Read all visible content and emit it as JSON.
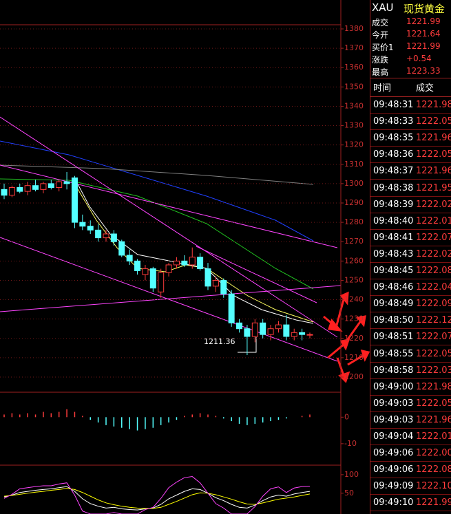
{
  "chart_data": [
    {
      "type": "candlestick",
      "open": [
        1297,
        1294,
        1298,
        1296,
        1299,
        1297,
        1300,
        1298,
        1301,
        1303,
        1280,
        1278,
        1276,
        1272,
        1274,
        1270,
        1263,
        1260,
        1253,
        1256,
        1244,
        1254,
        1258,
        1260,
        1258,
        1262,
        1256,
        1247,
        1250,
        1243,
        1228,
        1225,
        1221,
        1228,
        1222,
        1225,
        1227,
        1221,
        1223,
        1222
      ],
      "high": [
        1300,
        1299,
        1300,
        1301,
        1302,
        1301,
        1302,
        1302,
        1306,
        1304,
        1284,
        1281,
        1279,
        1276,
        1276,
        1271,
        1266,
        1261,
        1258,
        1257,
        1256,
        1259,
        1262,
        1263,
        1267,
        1264,
        1259,
        1252,
        1251,
        1245,
        1230,
        1227,
        1230,
        1230,
        1227,
        1229,
        1232,
        1225,
        1225,
        1223
      ],
      "low": [
        1292,
        1293,
        1295,
        1294,
        1296,
        1295,
        1297,
        1296,
        1297,
        1277,
        1276,
        1274,
        1270,
        1270,
        1268,
        1262,
        1258,
        1253,
        1250,
        1244,
        1241,
        1252,
        1256,
        1257,
        1256,
        1255,
        1245,
        1244,
        1241,
        1226,
        1223,
        1211.36,
        1218,
        1220,
        1219,
        1223,
        1219,
        1219,
        1219,
        1220
      ],
      "close": [
        1294,
        1298,
        1296,
        1299,
        1297,
        1300,
        1298,
        1301,
        1300,
        1280,
        1278,
        1276,
        1272,
        1274,
        1270,
        1263,
        1260,
        1255,
        1256,
        1246,
        1254,
        1258,
        1260,
        1258,
        1262,
        1256,
        1247,
        1250,
        1243,
        1228,
        1225,
        1221,
        1228,
        1222,
        1225,
        1227,
        1221,
        1223,
        1222,
        1222
      ],
      "up_color": "#ff3c3c",
      "down_color": "#54ffff",
      "ylim": [
        1200,
        1380
      ],
      "yticks": [
        1200,
        1210,
        1220,
        1230,
        1240,
        1250,
        1260,
        1270,
        1280,
        1290,
        1300,
        1310,
        1320,
        1330,
        1340,
        1350,
        1360,
        1370,
        1380
      ],
      "grid": true,
      "annotations": [
        {
          "text": "1211.36"
        }
      ]
    },
    {
      "type": "bar",
      "values": [
        1,
        1.5,
        1,
        1.5,
        1,
        2,
        1.5,
        2,
        3,
        2,
        0.5,
        -1,
        -2,
        -3,
        -3.5,
        -4,
        -4.5,
        -5,
        -4.5,
        -4,
        -3,
        -2,
        -1,
        0.5,
        1,
        1.5,
        1,
        0.5,
        -0.5,
        -1.5,
        -2.5,
        -3,
        -2.5,
        -2,
        -1.5,
        -1,
        -0.5,
        0,
        0.5,
        1
      ],
      "up_color": "#ff3c3c",
      "down_color": "#54ffff",
      "ylim": [
        -16,
        12
      ],
      "yticks": [
        -10,
        0
      ]
    },
    {
      "type": "line",
      "series": [
        {
          "name": "K",
          "color": "#ffffff",
          "values": [
            40,
            45,
            52,
            55,
            58,
            60,
            62,
            65,
            68,
            55,
            35,
            22,
            15,
            10,
            12,
            8,
            6,
            5,
            8,
            10,
            20,
            35,
            45,
            55,
            62,
            60,
            50,
            38,
            30,
            20,
            12,
            10,
            18,
            30,
            40,
            45,
            42,
            48,
            52,
            55
          ]
        },
        {
          "name": "D",
          "color": "#ffff00",
          "values": [
            42,
            44,
            47,
            50,
            53,
            55,
            58,
            60,
            63,
            60,
            52,
            42,
            32,
            24,
            19,
            15,
            12,
            10,
            9,
            9,
            12,
            20,
            28,
            37,
            46,
            51,
            50,
            46,
            40,
            34,
            27,
            21,
            20,
            24,
            29,
            34,
            37,
            40,
            44,
            48
          ]
        },
        {
          "name": "J",
          "color": "#ff44ff",
          "values": [
            36,
            47,
            62,
            65,
            68,
            70,
            70,
            75,
            78,
            45,
            2,
            -6,
            -6,
            -6,
            -2,
            -6,
            -6,
            -6,
            6,
            12,
            36,
            65,
            80,
            92,
            95,
            78,
            50,
            22,
            10,
            -6,
            -6,
            -6,
            14,
            42,
            62,
            67,
            52,
            64,
            68,
            69
          ]
        }
      ],
      "ylim": [
        -6,
        122
      ],
      "yticks": [
        50,
        100
      ]
    }
  ],
  "quote": {
    "symbol": "XAU",
    "name": "现货黄金",
    "rows": [
      [
        "成交",
        "1221.99"
      ],
      [
        "今开",
        "1221.64"
      ],
      [
        "买价1",
        "1221.99"
      ],
      [
        "涨跌",
        "+0.54"
      ],
      [
        "最高",
        "1223.33"
      ]
    ]
  },
  "trades": {
    "header": [
      "时间",
      "成交"
    ],
    "rows": [
      [
        "09:48:31",
        "1221.98"
      ],
      [
        "09:48:33",
        "1222.05"
      ],
      [
        "09:48:35",
        "1221.96"
      ],
      [
        "09:48:36",
        "1222.05"
      ],
      [
        "09:48:37",
        "1221.96"
      ],
      [
        "09:48:38",
        "1221.95"
      ],
      [
        "09:48:39",
        "1222.02"
      ],
      [
        "09:48:40",
        "1222.01"
      ],
      [
        "09:48:41",
        "1222.07"
      ],
      [
        "09:48:43",
        "1222.02"
      ],
      [
        "09:48:45",
        "1222.08"
      ],
      [
        "09:48:46",
        "1222.04"
      ],
      [
        "09:48:49",
        "1222.09"
      ],
      [
        "09:48:50",
        "1222.12"
      ],
      [
        "09:48:51",
        "1222.07"
      ],
      [
        "09:48:55",
        "1222.05"
      ],
      [
        "09:48:58",
        "1222.03"
      ],
      [
        "09:49:00",
        "1221.98"
      ],
      [
        "09:49:03",
        "1222.05"
      ],
      [
        "09:49:03",
        "1221.96"
      ],
      [
        "09:49:04",
        "1222.01"
      ],
      [
        "09:49:06",
        "1222.00"
      ],
      [
        "09:49:06",
        "1222.08"
      ],
      [
        "09:49:09",
        "1222.10"
      ],
      [
        "09:49:10",
        "1221.99"
      ]
    ]
  }
}
